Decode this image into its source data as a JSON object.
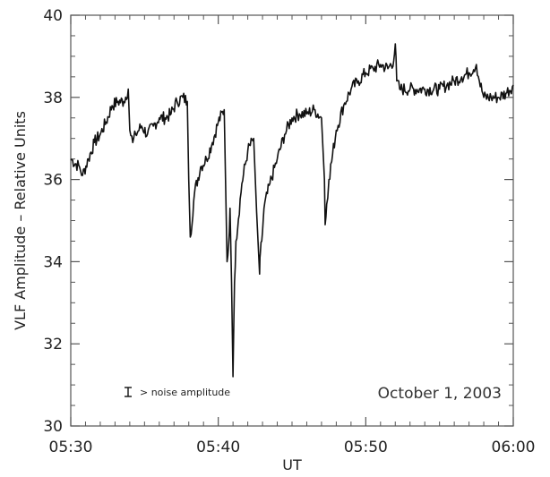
{
  "chart_data": {
    "type": "line",
    "title": "",
    "xlabel": "UT",
    "ylabel": "VLF Amplitude – Relative Units",
    "xlim": [
      0,
      30
    ],
    "ylim": [
      30,
      40
    ],
    "x_ticks": [
      {
        "value": 0,
        "label": "05:30"
      },
      {
        "value": 10,
        "label": "05:40"
      },
      {
        "value": 20,
        "label": "05:50"
      },
      {
        "value": 30,
        "label": "06:00"
      }
    ],
    "y_ticks": [
      {
        "value": 30,
        "label": "30"
      },
      {
        "value": 32,
        "label": "32"
      },
      {
        "value": 34,
        "label": "34"
      },
      {
        "value": 36,
        "label": "36"
      },
      {
        "value": 38,
        "label": "38"
      },
      {
        "value": 40,
        "label": "40"
      }
    ],
    "grid": false,
    "series": [
      {
        "name": "",
        "x_unit": "minutes after 05:30 UT",
        "x": [
          0,
          0.6,
          0.8,
          1.2,
          1.6,
          2.0,
          2.4,
          2.8,
          3.2,
          3.6,
          3.9,
          4.0,
          4.2,
          4.4,
          4.8,
          5.2,
          5.6,
          6.0,
          6.4,
          6.8,
          7.2,
          7.6,
          7.9,
          8.0,
          8.1,
          8.4,
          8.8,
          9.2,
          9.6,
          10.0,
          10.4,
          10.6,
          10.7,
          10.8,
          10.9,
          11.0,
          11.1,
          11.2,
          11.6,
          12.0,
          12.4,
          12.6,
          12.8,
          12.85,
          12.95,
          13.1,
          13.5,
          14.0,
          14.5,
          15.0,
          15.5,
          16.0,
          16.5,
          17.0,
          17.2,
          17.25,
          17.35,
          17.5,
          18.0,
          18.5,
          19.0,
          19.5,
          20.0,
          20.5,
          21.0,
          21.5,
          21.9,
          22.0,
          22.1,
          22.3,
          23.0,
          24.0,
          25.0,
          25.5,
          26.0,
          26.5,
          27.0,
          27.5,
          27.7,
          28.0,
          28.5,
          29.0,
          29.5,
          30.0
        ],
        "y": [
          36.5,
          36.3,
          36.1,
          36.5,
          36.9,
          37.1,
          37.4,
          37.8,
          37.9,
          37.9,
          38.2,
          37.2,
          36.9,
          37.1,
          37.3,
          37.1,
          37.3,
          37.5,
          37.5,
          37.6,
          37.9,
          38.0,
          37.9,
          36.0,
          34.6,
          35.7,
          36.3,
          36.5,
          36.9,
          37.4,
          37.7,
          34.0,
          34.4,
          35.3,
          33.5,
          31.2,
          33.5,
          34.5,
          35.9,
          36.7,
          37.0,
          35.2,
          33.7,
          34.2,
          34.5,
          35.3,
          35.9,
          36.5,
          37.1,
          37.5,
          37.6,
          37.6,
          37.7,
          37.5,
          36.0,
          34.9,
          35.4,
          36.0,
          37.2,
          37.8,
          38.2,
          38.4,
          38.6,
          38.7,
          38.8,
          38.7,
          38.9,
          39.3,
          38.4,
          38.2,
          38.2,
          38.2,
          38.2,
          38.3,
          38.4,
          38.5,
          38.6,
          38.8,
          38.4,
          38.0,
          38.0,
          38.0,
          38.1,
          38.3
        ]
      }
    ],
    "annotations": {
      "date": "October 1, 2003",
      "noise_label": "> noise amplitude"
    }
  }
}
